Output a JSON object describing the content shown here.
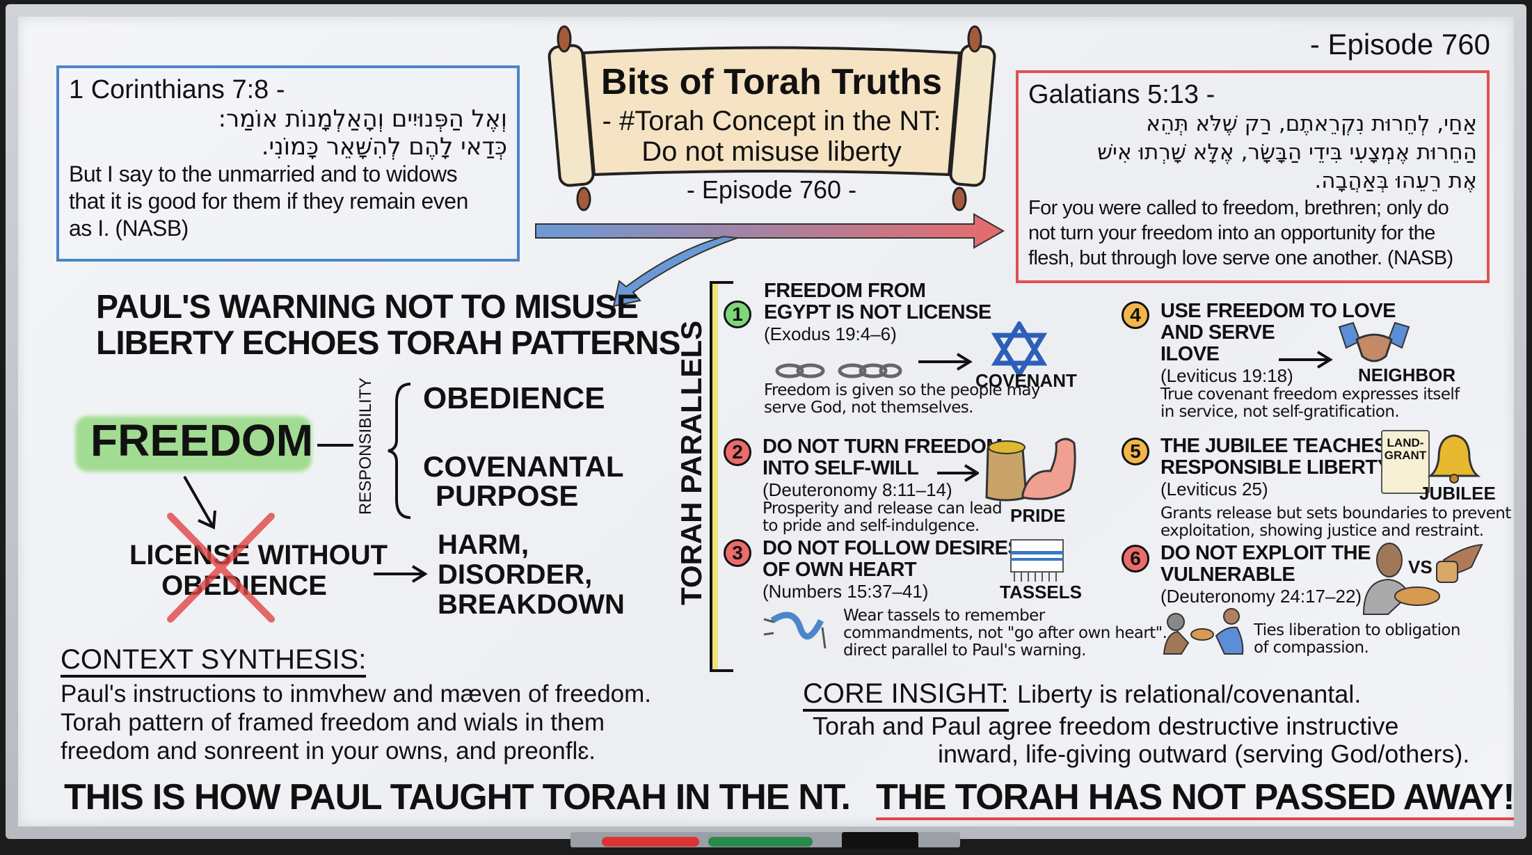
{
  "title": {
    "main": "Bits of Torah Truths",
    "subtitle_line1": "- #Torah Concept in the NT:",
    "subtitle_line2": "Do not misuse liberty",
    "episode": "- Episode 760 -"
  },
  "episode_corner": "- Episode 760",
  "left_verse": {
    "reference": "1 Corinthians 7:8 -",
    "hebrew": [
      "וְאֶל הַפְּנוּיִים וְהָאַלְמָנוֹת אוֹמַר:",
      "כְּדַאי לָהֶם לְהִשָּׁאֵר כָּמוֹנִי."
    ],
    "english": [
      "But I say to the unmarried and to widows",
      "that it is good for them if they remain even",
      "as I.  (NASB)"
    ],
    "border_color": "#4a86c8"
  },
  "right_verse": {
    "reference": "Galatians 5:13 -",
    "hebrew": [
      "אַחַי, לְחֵרוּת נִקְרֵאתֶם, רַק שֶׁלֹּא תְּהֵא",
      "הַחֵרוּת אֶמְצָעִי בִּידֵי הַבָּשָׂר, אֶלָּא שָׁרְתוּ אִישׁ",
      "אֶת רֵעֵהוּ בְּאַהֲבָה."
    ],
    "english": [
      "For you were called to freedom, brethren; only do",
      "not turn your freedom into an opportunity for the",
      "flesh, but through love serve one another. (NASB)"
    ],
    "border_color": "#e05050"
  },
  "warning_heading": [
    "PAUL'S WARNING NOT TO MISUSE",
    "LIBERTY ECHOES TORAH PATTERNS"
  ],
  "concept_map": {
    "freedom": "FREEDOM",
    "responsibility": "RESPONSIBILITY",
    "branches": [
      "OBEDIENCE",
      "COVENANTAL",
      "PURPOSE"
    ],
    "license": [
      "LICENSE WITHOUT",
      "OBEDIENCE"
    ],
    "results": [
      "HARM,",
      "DISORDER,",
      "BREAKDOWN"
    ]
  },
  "torah_parallels": {
    "label": "TORAH PARALLELS",
    "items": [
      {
        "number": "1",
        "color": "#7cd67a",
        "title": [
          "FREEDOM FROM",
          "EGYPT IS NOT LICENSE"
        ],
        "ref": "(Exodus 19:4–6)",
        "icon_label": "COVENANT",
        "icon": "star-of-david-icon",
        "desc": [
          "Freedom is given so the people may",
          "serve God, not themselves."
        ]
      },
      {
        "number": "2",
        "color": "#ec6b6b",
        "title": [
          "DO NOT TURN FREEDOM",
          "INTO SELF-WILL"
        ],
        "ref": "(Deuteronomy 8:11–14)",
        "icon_label": "PRIDE",
        "icon": "flexed-arm-icon",
        "desc": [
          "Prosperity and release can lead",
          "to pride and self-indulgence."
        ]
      },
      {
        "number": "3",
        "color": "#ec6b6b",
        "title": [
          "DO NOT FOLLOW DESIRES",
          "OF OWN HEART"
        ],
        "ref": "(Numbers 15:37–41)",
        "icon_label": "TASSELS",
        "icon": "prayer-shawl-icon",
        "desc": [
          "Wear tassels to remember",
          "commandments, not \"go after own heart\".",
          "direct parallel to Paul's warning."
        ]
      },
      {
        "number": "4",
        "color": "#f2b64a",
        "title": [
          "USE FREEDOM TO LOVE",
          "AND SERVE",
          "ILOVE"
        ],
        "ref": "(Leviticus 19:18)",
        "icon_label": "NEIGHBOR",
        "icon": "handshake-icon",
        "desc": [
          "True covenant freedom expresses itself",
          "in service, not self-gratification."
        ]
      },
      {
        "number": "5",
        "color": "#f2b64a",
        "title": [
          "THE JUBILEE TEACHES",
          "RESPONSIBLE LIBERTY"
        ],
        "ref": "(Leviticus 25)",
        "icon_label": "JUBILEE",
        "icon": "bell-icon",
        "scroll_label": [
          "LAND-",
          "GRANT"
        ],
        "desc": [
          "Grants release but sets boundaries to prevent",
          "exploitation, showing justice and restraint."
        ]
      },
      {
        "number": "6",
        "color": "#ec6b6b",
        "title": [
          "DO NOT EXPLOIT THE",
          "VULNERABLE"
        ],
        "ref": "(Deuteronomy 24:17–22)",
        "icon_label": "VS",
        "icon": "sharing-bread-icon",
        "desc": [
          "Ties liberation to obligation",
          "of compassion."
        ]
      }
    ]
  },
  "context_synthesis": {
    "heading": "CONTEXT SYNTHESIS:",
    "lines": [
      "Paul's instructions to inmvhew and mæven of freedom.",
      "Torah pattern of framed freedom and wials in them",
      "freedom and sonreent in your owns, and preonflɛ."
    ]
  },
  "core_insight": {
    "heading": "CORE INSIGHT:",
    "text": "Liberty is relational/covenantal.",
    "lines": [
      "Torah and Paul agree freedom destructive instructive",
      "inward, life-giving outward (serving God/others)."
    ]
  },
  "banner": {
    "part1": "THIS IS HOW PAUL TAUGHT TORAH IN THE NT.",
    "part2": "THE TORAH HAS NOT PASSED AWAY!"
  },
  "colors": {
    "blue": "#4a86c8",
    "red": "#e05050",
    "green_highlight": "#8fd67a",
    "yellow_bracket": "#f0e37a"
  }
}
